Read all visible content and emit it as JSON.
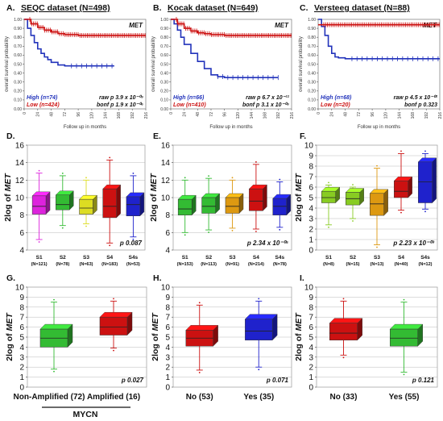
{
  "figure": {
    "colors": {
      "high": "#2233bb",
      "low": "#cc1111",
      "magenta": "#dd22dd",
      "green": "#33bb33",
      "yellow": "#dddd22",
      "red": "#cc1111",
      "blue": "#1f22cc",
      "lightgreen": "#88cc22",
      "orange": "#dd9911",
      "gray_grid": "#aaaaaa"
    },
    "mycn_label": "MYCN"
  },
  "chart_data": [
    {
      "id": "A",
      "type": "line",
      "panel_letter": "A.",
      "title": "SEQC dataset (N=498)",
      "gene": "MET",
      "xlabel": "Follow up in months",
      "ylabel": "overall survival probability",
      "xlim": [
        0,
        216
      ],
      "ylim": [
        0,
        1
      ],
      "xticks": [
        "0",
        "24",
        "48",
        "72",
        "96",
        "120",
        "144",
        "168",
        "192",
        "216"
      ],
      "yticks": [
        "0.00",
        "0.10",
        "0.20",
        "0.30",
        "0.40",
        "0.50",
        "0.60",
        "0.70",
        "0.80",
        "0.90",
        "1.00"
      ],
      "series": [
        {
          "name": "High (n=74)",
          "color": "high",
          "x": [
            0,
            6,
            12,
            18,
            24,
            30,
            36,
            42,
            48,
            60,
            72,
            84,
            96,
            120,
            160
          ],
          "y": [
            1.0,
            0.9,
            0.82,
            0.74,
            0.67,
            0.62,
            0.58,
            0.55,
            0.52,
            0.49,
            0.48,
            0.48,
            0.48,
            0.48,
            0.48
          ]
        },
        {
          "name": "Low (n=424)",
          "color": "low",
          "x": [
            0,
            12,
            24,
            36,
            48,
            60,
            72,
            96,
            120,
            216
          ],
          "y": [
            1.0,
            0.95,
            0.91,
            0.88,
            0.86,
            0.84,
            0.83,
            0.82,
            0.82,
            0.82
          ]
        }
      ],
      "stats": [
        "raw p 3.9 x 10⁻⁰⁹",
        "bonf p 1.9 x 10⁻⁰⁶"
      ]
    },
    {
      "id": "B",
      "type": "line",
      "panel_letter": "B.",
      "title": "Kocak dataset (N=649)",
      "gene": "MET",
      "xlabel": "Follow up in months",
      "ylabel": "overall survival probability",
      "xlim": [
        0,
        216
      ],
      "ylim": [
        0,
        1
      ],
      "xticks": [
        "0",
        "24",
        "48",
        "72",
        "96",
        "120",
        "144",
        "168",
        "192",
        "216"
      ],
      "yticks": [
        "0.00",
        "0.10",
        "0.20",
        "0.30",
        "0.40",
        "0.50",
        "0.60",
        "0.70",
        "0.80",
        "0.90",
        "1.00"
      ],
      "series": [
        {
          "name": "High (n=66)",
          "color": "high",
          "x": [
            0,
            6,
            12,
            18,
            24,
            36,
            48,
            60,
            72,
            84,
            96,
            120,
            192
          ],
          "y": [
            1.0,
            0.95,
            0.88,
            0.8,
            0.72,
            0.62,
            0.53,
            0.45,
            0.38,
            0.36,
            0.35,
            0.35,
            0.35
          ]
        },
        {
          "name": "Low (n=410)",
          "color": "low",
          "x": [
            0,
            12,
            24,
            36,
            48,
            60,
            72,
            96,
            120,
            216
          ],
          "y": [
            1.0,
            0.95,
            0.9,
            0.87,
            0.85,
            0.84,
            0.83,
            0.82,
            0.82,
            0.82
          ]
        }
      ],
      "stats": [
        "raw p 6.7 x 10⁻¹¹",
        "bonf p 3.1 x 10⁻⁰⁸"
      ]
    },
    {
      "id": "C",
      "type": "line",
      "panel_letter": "C.",
      "title": "Versteeg dataset (N=88)",
      "gene": "MET",
      "xlabel": "Follow up in months",
      "ylabel": "overall survival probability",
      "xlim": [
        0,
        216
      ],
      "ylim": [
        0,
        1
      ],
      "xticks": [
        "0",
        "24",
        "48",
        "72",
        "96",
        "120",
        "144",
        "168",
        "192",
        "216"
      ],
      "yticks": [
        "0.00",
        "0.10",
        "0.20",
        "0.30",
        "0.40",
        "0.50",
        "0.60",
        "0.70",
        "0.80",
        "0.90",
        "1.00"
      ],
      "series": [
        {
          "name": "High (n=68)",
          "color": "high",
          "x": [
            0,
            6,
            12,
            18,
            24,
            30,
            36,
            48,
            60,
            96,
            144,
            216
          ],
          "y": [
            1.0,
            0.92,
            0.82,
            0.7,
            0.62,
            0.58,
            0.57,
            0.56,
            0.56,
            0.56,
            0.56,
            0.56
          ]
        },
        {
          "name": "Low (n=20)",
          "color": "low",
          "x": [
            0,
            216
          ],
          "y": [
            0.94,
            0.94
          ]
        }
      ],
      "stats": [
        "raw p 4.5 x 10⁻⁰²",
        "bonf p 0.323"
      ]
    },
    {
      "id": "D",
      "type": "box",
      "panel_letter": "D.",
      "ylabel": "2log of MET",
      "ylim": [
        4,
        16
      ],
      "yticks": [
        "4",
        "6",
        "8",
        "10",
        "12",
        "14",
        "16"
      ],
      "groups": [
        {
          "label": "S1",
          "n": "(N=121)",
          "color": "magenta",
          "min": 5.2,
          "q1": 8.1,
          "median": 9.0,
          "q3": 10.2,
          "max": 12.8
        },
        {
          "label": "S2",
          "n": "(N=78)",
          "color": "green",
          "min": 6.8,
          "q1": 8.6,
          "median": 9.2,
          "q3": 10.3,
          "max": 12.5
        },
        {
          "label": "S3",
          "n": "(N=63)",
          "color": "yellow",
          "min": 7.0,
          "q1": 8.1,
          "median": 8.8,
          "q3": 9.8,
          "max": 12.0
        },
        {
          "label": "S4",
          "n": "(N=183)",
          "color": "red",
          "min": 4.8,
          "q1": 7.7,
          "median": 9.0,
          "q3": 11.0,
          "max": 14.3
        },
        {
          "label": "S4s",
          "n": "(N=53)",
          "color": "blue",
          "min": 5.5,
          "q1": 7.9,
          "median": 9.2,
          "q3": 10.1,
          "max": 12.5
        }
      ],
      "stats": "p 0.087"
    },
    {
      "id": "E",
      "type": "box",
      "panel_letter": "E.",
      "ylabel": "2log of MET",
      "ylim": [
        4,
        16
      ],
      "yticks": [
        "4",
        "6",
        "8",
        "10",
        "12",
        "14",
        "16"
      ],
      "groups": [
        {
          "label": "S1",
          "n": "(N=153)",
          "color": "green",
          "min": 6.0,
          "q1": 8.0,
          "median": 8.7,
          "q3": 9.8,
          "max": 12.0
        },
        {
          "label": "S2",
          "n": "(N=113)",
          "color": "green",
          "min": 6.3,
          "q1": 8.2,
          "median": 9.0,
          "q3": 10.0,
          "max": 12.2
        },
        {
          "label": "S3",
          "n": "(N=91)",
          "color": "orange",
          "min": 6.5,
          "q1": 8.2,
          "median": 9.0,
          "q3": 10.0,
          "max": 12.0
        },
        {
          "label": "S4",
          "n": "(N=214)",
          "color": "red",
          "min": 6.4,
          "q1": 8.5,
          "median": 9.6,
          "q3": 11.0,
          "max": 13.8
        },
        {
          "label": "S4s",
          "n": "(N=78)",
          "color": "blue",
          "min": 6.6,
          "q1": 8.0,
          "median": 9.0,
          "q3": 9.9,
          "max": 11.8
        }
      ],
      "stats": "p 2.34 x 10⁻⁰⁵"
    },
    {
      "id": "F",
      "type": "box",
      "panel_letter": "F.",
      "ylabel": "2log of MET",
      "ylim": [
        0,
        10
      ],
      "yticks": [
        "0",
        "1",
        "2",
        "3",
        "4",
        "5",
        "6",
        "7",
        "8",
        "9",
        "10"
      ],
      "groups": [
        {
          "label": "S1",
          "n": "(N=8)",
          "color": "lightgreen",
          "min": 2.4,
          "q1": 4.5,
          "median": 5.0,
          "q3": 5.6,
          "max": 6.2
        },
        {
          "label": "S2",
          "n": "(N=15)",
          "color": "lightgreen",
          "min": 3.0,
          "q1": 4.3,
          "median": 4.9,
          "q3": 5.5,
          "max": 6.0
        },
        {
          "label": "S3",
          "n": "(N=13)",
          "color": "orange",
          "min": 0.5,
          "q1": 3.3,
          "median": 4.4,
          "q3": 5.4,
          "max": 7.8
        },
        {
          "label": "S4",
          "n": "(N=40)",
          "color": "red",
          "min": 3.8,
          "q1": 5.0,
          "median": 5.6,
          "q3": 6.6,
          "max": 9.2
        },
        {
          "label": "S4s",
          "n": "(N=12)",
          "color": "blue",
          "min": 3.9,
          "q1": 4.5,
          "median": 6.5,
          "q3": 8.4,
          "max": 9.2
        }
      ],
      "stats": "p 2.23 x 10⁻⁰³"
    },
    {
      "id": "G",
      "type": "box",
      "panel_letter": "G.",
      "ylabel": "2log of MET",
      "ylim": [
        0,
        10
      ],
      "yticks": [
        "0",
        "1",
        "2",
        "3",
        "4",
        "5",
        "6",
        "7",
        "8",
        "9",
        "10"
      ],
      "groups": [
        {
          "label": "Non-Amplified (72)",
          "n": "",
          "color": "green",
          "min": 1.8,
          "q1": 4.0,
          "median": 4.9,
          "q3": 5.8,
          "max": 8.5
        },
        {
          "label": "Amplified (16)",
          "n": "",
          "color": "red",
          "min": 3.9,
          "q1": 5.2,
          "median": 6.0,
          "q3": 7.0,
          "max": 8.6
        }
      ],
      "stats": "p 0.027"
    },
    {
      "id": "H",
      "type": "box",
      "panel_letter": "H.",
      "ylabel": "2log of MET",
      "ylim": [
        0,
        10
      ],
      "yticks": [
        "0",
        "1",
        "2",
        "3",
        "4",
        "5",
        "6",
        "7",
        "8",
        "9",
        "10"
      ],
      "groups": [
        {
          "label": "No (53)",
          "n": "",
          "color": "red",
          "min": 1.7,
          "q1": 4.1,
          "median": 4.9,
          "q3": 5.7,
          "max": 8.2
        },
        {
          "label": "Yes (35)",
          "n": "",
          "color": "blue",
          "min": 2.0,
          "q1": 4.7,
          "median": 5.6,
          "q3": 6.8,
          "max": 8.6
        }
      ],
      "stats": "p 0.071"
    },
    {
      "id": "I",
      "type": "box",
      "panel_letter": "I.",
      "ylabel": "2log of MET",
      "ylim": [
        0,
        10
      ],
      "yticks": [
        "0",
        "1",
        "2",
        "3",
        "4",
        "5",
        "6",
        "7",
        "8",
        "9",
        "10"
      ],
      "groups": [
        {
          "label": "No (33)",
          "n": "",
          "color": "red",
          "min": 3.2,
          "q1": 4.7,
          "median": 5.4,
          "q3": 6.4,
          "max": 8.6
        },
        {
          "label": "Yes (55)",
          "n": "",
          "color": "green",
          "min": 1.5,
          "q1": 4.1,
          "median": 4.9,
          "q3": 5.8,
          "max": 8.5
        }
      ],
      "stats": "p 0.121"
    }
  ]
}
